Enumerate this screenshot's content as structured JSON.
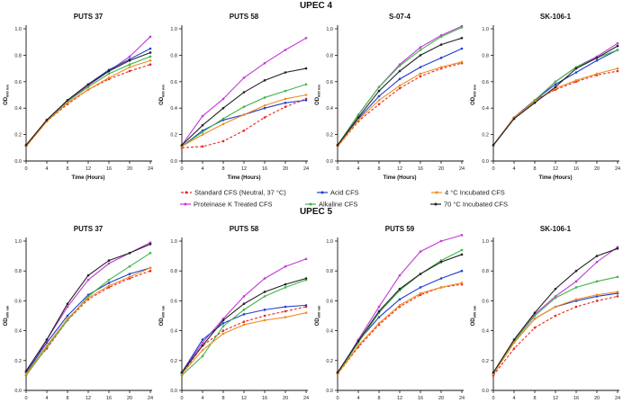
{
  "figure": {
    "group1_title": "UPEC 4",
    "group2_title": "UPEC 5",
    "xlabel": "Time (Hours)",
    "ylabel_main": "OD",
    "ylabel_sub": "600 nm",
    "x_ticks": [
      0,
      4,
      8,
      12,
      16,
      20,
      24
    ],
    "y_ticks": [
      "0.0",
      "0.2",
      "0.4",
      "0.6",
      "0.8",
      "1.0"
    ],
    "legend": [
      {
        "name": "Standard CFS (Neutral, 37 °C)",
        "color": "#e8271f",
        "dashed": true
      },
      {
        "name": "Proteinase K Treated CFS",
        "color": "#c13ad6",
        "dashed": false
      },
      {
        "name": "Acid CFS",
        "color": "#1f3fd1",
        "dashed": false
      },
      {
        "name": "Alkaline CFS",
        "color": "#3fb54a",
        "dashed": false
      },
      {
        "name": "4 °C Incubated CFS",
        "color": "#f18c1f",
        "dashed": false
      },
      {
        "name": "70 °C Incubated CFS",
        "color": "#222222",
        "dashed": false
      }
    ]
  },
  "chart_data": [
    {
      "type": "line",
      "group": "UPEC 4",
      "title": "PUTS 37",
      "xlabel": "Time (Hours)",
      "ylabel": "OD600 nm",
      "ylim": [
        0,
        1.0
      ],
      "x": [
        0,
        4,
        8,
        12,
        16,
        20,
        24
      ],
      "series": [
        {
          "name": "Standard CFS (Neutral, 37 °C)",
          "values": [
            0.11,
            0.3,
            0.43,
            0.54,
            0.62,
            0.68,
            0.73
          ]
        },
        {
          "name": "Proteinase K Treated CFS",
          "values": [
            0.12,
            0.31,
            0.45,
            0.57,
            0.68,
            0.79,
            0.94
          ]
        },
        {
          "name": "Acid CFS",
          "values": [
            0.12,
            0.31,
            0.46,
            0.58,
            0.69,
            0.77,
            0.85
          ]
        },
        {
          "name": "Alkaline CFS",
          "values": [
            0.12,
            0.31,
            0.45,
            0.56,
            0.66,
            0.73,
            0.79
          ]
        },
        {
          "name": "4 °C Incubated CFS",
          "values": [
            0.11,
            0.3,
            0.44,
            0.54,
            0.63,
            0.71,
            0.76
          ]
        },
        {
          "name": "70 °C Incubated CFS",
          "values": [
            0.12,
            0.31,
            0.46,
            0.58,
            0.68,
            0.76,
            0.82
          ]
        }
      ]
    },
    {
      "type": "line",
      "group": "UPEC 4",
      "title": "PUTS 58",
      "xlabel": "Time (Hours)",
      "ylabel": "OD600 nm",
      "ylim": [
        0,
        1.0
      ],
      "x": [
        0,
        4,
        8,
        12,
        16,
        20,
        24
      ],
      "series": [
        {
          "name": "Standard CFS (Neutral, 37 °C)",
          "values": [
            0.1,
            0.11,
            0.15,
            0.23,
            0.33,
            0.41,
            0.47
          ]
        },
        {
          "name": "Proteinase K Treated CFS",
          "values": [
            0.12,
            0.34,
            0.47,
            0.63,
            0.74,
            0.84,
            0.93
          ]
        },
        {
          "name": "Acid CFS",
          "values": [
            0.11,
            0.23,
            0.31,
            0.35,
            0.4,
            0.44,
            0.46
          ]
        },
        {
          "name": "Alkaline CFS",
          "values": [
            0.11,
            0.22,
            0.32,
            0.41,
            0.48,
            0.53,
            0.58
          ]
        },
        {
          "name": "4 °C Incubated CFS",
          "values": [
            0.11,
            0.2,
            0.28,
            0.35,
            0.42,
            0.47,
            0.5
          ]
        },
        {
          "name": "70 °C Incubated CFS",
          "values": [
            0.12,
            0.27,
            0.4,
            0.52,
            0.61,
            0.67,
            0.7
          ]
        }
      ]
    },
    {
      "type": "line",
      "group": "UPEC 4",
      "title": "S-07-4",
      "xlabel": "Time (Hours)",
      "ylabel": "OD600 nm",
      "ylim": [
        0,
        1.0
      ],
      "x": [
        0,
        4,
        8,
        12,
        16,
        20,
        24
      ],
      "series": [
        {
          "name": "Standard CFS (Neutral, 37 °C)",
          "values": [
            0.11,
            0.3,
            0.43,
            0.55,
            0.64,
            0.7,
            0.74
          ]
        },
        {
          "name": "Proteinase K Treated CFS",
          "values": [
            0.12,
            0.35,
            0.56,
            0.73,
            0.86,
            0.95,
            1.02
          ]
        },
        {
          "name": "Acid CFS",
          "values": [
            0.12,
            0.32,
            0.49,
            0.62,
            0.71,
            0.78,
            0.85
          ]
        },
        {
          "name": "Alkaline CFS",
          "values": [
            0.12,
            0.35,
            0.56,
            0.72,
            0.84,
            0.94,
            1.01
          ]
        },
        {
          "name": "4 °C Incubated CFS",
          "values": [
            0.11,
            0.31,
            0.46,
            0.57,
            0.66,
            0.71,
            0.75
          ]
        },
        {
          "name": "70 °C Incubated CFS",
          "values": [
            0.12,
            0.33,
            0.53,
            0.68,
            0.8,
            0.88,
            0.93
          ]
        }
      ]
    },
    {
      "type": "line",
      "group": "UPEC 4",
      "title": "SK-106-1",
      "xlabel": "Time (Hours)",
      "ylabel": "OD600 nm",
      "ylim": [
        0,
        1.0
      ],
      "x": [
        0,
        4,
        8,
        12,
        16,
        20,
        24
      ],
      "series": [
        {
          "name": "Standard CFS (Neutral, 37 °C)",
          "values": [
            0.12,
            0.33,
            0.46,
            0.54,
            0.6,
            0.65,
            0.68
          ]
        },
        {
          "name": "Proteinase K Treated CFS",
          "values": [
            0.12,
            0.32,
            0.45,
            0.6,
            0.71,
            0.79,
            0.89
          ]
        },
        {
          "name": "Acid CFS",
          "values": [
            0.12,
            0.33,
            0.46,
            0.58,
            0.67,
            0.76,
            0.84
          ]
        },
        {
          "name": "Alkaline CFS",
          "values": [
            0.12,
            0.32,
            0.46,
            0.6,
            0.71,
            0.78,
            0.84
          ]
        },
        {
          "name": "4 °C Incubated CFS",
          "values": [
            0.12,
            0.33,
            0.45,
            0.55,
            0.61,
            0.66,
            0.7
          ]
        },
        {
          "name": "70 °C Incubated CFS",
          "values": [
            0.12,
            0.32,
            0.44,
            0.56,
            0.7,
            0.78,
            0.87
          ]
        }
      ]
    },
    {
      "type": "line",
      "group": "UPEC 5",
      "title": "PUTS 37",
      "xlabel": "Time (Hours)",
      "ylabel": "OD600 nm",
      "ylim": [
        0,
        1.0
      ],
      "x": [
        0,
        4,
        8,
        12,
        16,
        20,
        24
      ],
      "series": [
        {
          "name": "Standard CFS (Neutral, 37 °C)",
          "values": [
            0.12,
            0.28,
            0.47,
            0.61,
            0.69,
            0.75,
            0.8
          ]
        },
        {
          "name": "Proteinase K Treated CFS",
          "values": [
            0.1,
            0.34,
            0.56,
            0.74,
            0.85,
            0.92,
            0.99
          ]
        },
        {
          "name": "Acid CFS",
          "values": [
            0.12,
            0.32,
            0.5,
            0.64,
            0.72,
            0.78,
            0.82
          ]
        },
        {
          "name": "Alkaline CFS",
          "values": [
            0.1,
            0.29,
            0.47,
            0.63,
            0.74,
            0.83,
            0.92
          ]
        },
        {
          "name": "4 °C Incubated CFS",
          "values": [
            0.11,
            0.3,
            0.48,
            0.62,
            0.7,
            0.76,
            0.82
          ]
        },
        {
          "name": "70 °C Incubated CFS",
          "values": [
            0.13,
            0.34,
            0.58,
            0.77,
            0.87,
            0.92,
            0.98
          ]
        }
      ]
    },
    {
      "type": "line",
      "group": "UPEC 5",
      "title": "PUTS 58",
      "xlabel": "Time (Hours)",
      "ylabel": "OD600 nm",
      "ylim": [
        0,
        1.0
      ],
      "x": [
        0,
        4,
        8,
        12,
        16,
        20,
        24
      ],
      "series": [
        {
          "name": "Standard CFS (Neutral, 37 °C)",
          "values": [
            0.11,
            0.3,
            0.4,
            0.46,
            0.5,
            0.53,
            0.56
          ]
        },
        {
          "name": "Proteinase K Treated CFS",
          "values": [
            0.12,
            0.32,
            0.48,
            0.63,
            0.75,
            0.83,
            0.88
          ]
        },
        {
          "name": "Acid CFS",
          "values": [
            0.12,
            0.34,
            0.45,
            0.51,
            0.54,
            0.56,
            0.57
          ]
        },
        {
          "name": "Alkaline CFS",
          "values": [
            0.1,
            0.23,
            0.43,
            0.54,
            0.63,
            0.69,
            0.74
          ]
        },
        {
          "name": "4 °C Incubated CFS",
          "values": [
            0.11,
            0.27,
            0.38,
            0.44,
            0.47,
            0.49,
            0.52
          ]
        },
        {
          "name": "70 °C Incubated CFS",
          "values": [
            0.12,
            0.3,
            0.47,
            0.58,
            0.66,
            0.71,
            0.75
          ]
        }
      ]
    },
    {
      "type": "line",
      "group": "UPEC 5",
      "title": "PUTS 59",
      "xlabel": "Time (Hours)",
      "ylabel": "OD600 nm",
      "ylim": [
        0,
        1.0
      ],
      "x": [
        0,
        4,
        8,
        12,
        16,
        20,
        24
      ],
      "series": [
        {
          "name": "Standard CFS (Neutral, 37 °C)",
          "values": [
            0.11,
            0.29,
            0.44,
            0.56,
            0.64,
            0.69,
            0.71
          ]
        },
        {
          "name": "Proteinase K Treated CFS",
          "values": [
            0.11,
            0.34,
            0.56,
            0.77,
            0.93,
            1.0,
            1.04
          ]
        },
        {
          "name": "Acid CFS",
          "values": [
            0.12,
            0.33,
            0.49,
            0.61,
            0.69,
            0.75,
            0.8
          ]
        },
        {
          "name": "Alkaline CFS",
          "values": [
            0.11,
            0.32,
            0.52,
            0.67,
            0.78,
            0.87,
            0.94
          ]
        },
        {
          "name": "4 °C Incubated CFS",
          "values": [
            0.11,
            0.3,
            0.45,
            0.57,
            0.65,
            0.69,
            0.72
          ]
        },
        {
          "name": "70 °C Incubated CFS",
          "values": [
            0.12,
            0.33,
            0.53,
            0.68,
            0.78,
            0.86,
            0.91
          ]
        }
      ]
    },
    {
      "type": "line",
      "group": "UPEC 5",
      "title": "SK-106-1",
      "xlabel": "Time (Hours)",
      "ylabel": "OD600 nm",
      "ylim": [
        0,
        1.0
      ],
      "x": [
        0,
        4,
        8,
        12,
        16,
        20,
        24
      ],
      "series": [
        {
          "name": "Standard CFS (Neutral, 37 °C)",
          "values": [
            0.1,
            0.28,
            0.42,
            0.5,
            0.56,
            0.6,
            0.63
          ]
        },
        {
          "name": "Proteinase K Treated CFS",
          "values": [
            0.11,
            0.33,
            0.51,
            0.63,
            0.73,
            0.86,
            0.96
          ]
        },
        {
          "name": "Acid CFS",
          "values": [
            0.11,
            0.32,
            0.48,
            0.56,
            0.6,
            0.63,
            0.65
          ]
        },
        {
          "name": "Alkaline CFS",
          "values": [
            0.11,
            0.33,
            0.5,
            0.62,
            0.69,
            0.73,
            0.76
          ]
        },
        {
          "name": "4 °C Incubated CFS",
          "values": [
            0.11,
            0.32,
            0.48,
            0.56,
            0.61,
            0.64,
            0.66
          ]
        },
        {
          "name": "70 °C Incubated CFS",
          "values": [
            0.12,
            0.34,
            0.52,
            0.68,
            0.8,
            0.9,
            0.95
          ]
        }
      ]
    }
  ]
}
